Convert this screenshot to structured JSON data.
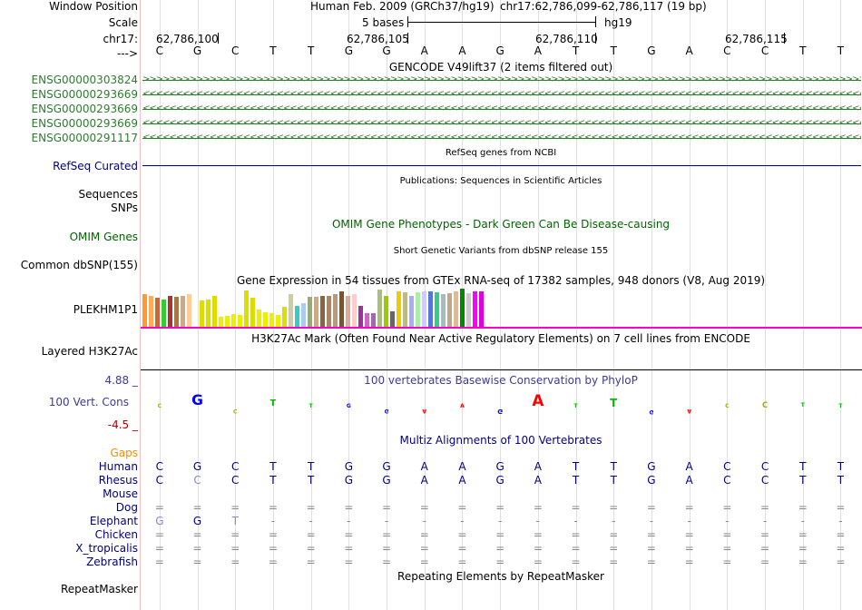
{
  "header": {
    "window_position_label": "Window Position",
    "scale_label": "Scale",
    "chrom_label": "chr17:",
    "strand_label": "--->",
    "assembly_text": "Human Feb. 2009 (GRCh37/hg19)",
    "position_text": "chr17:62,786,099-62,786,117 (19 bp)",
    "scale_text": "5 bases",
    "db_text": "hg19",
    "ticks": [
      "62,786,100",
      "62,786,105",
      "62,786,110",
      "62,786,115"
    ]
  },
  "sequence": [
    "C",
    "G",
    "C",
    "T",
    "T",
    "G",
    "G",
    "A",
    "A",
    "G",
    "A",
    "T",
    "T",
    "G",
    "A",
    "C",
    "C",
    "T",
    "T"
  ],
  "gencode": {
    "title": "GENCODE V49lift37 (2 items filtered out)",
    "genes": [
      {
        "id": "ENSG00000303824",
        "strand": "+"
      },
      {
        "id": "ENSG00000293669",
        "strand": "-"
      },
      {
        "id": "ENSG00000293669",
        "strand": "-"
      },
      {
        "id": "ENSG00000293669",
        "strand": "-"
      },
      {
        "id": "ENSG00000291117",
        "strand": "-"
      }
    ]
  },
  "refseq": {
    "title": "RefSeq genes from NCBI",
    "label": "RefSeq Curated"
  },
  "publications": {
    "title": "Publications: Sequences in Scientific Articles",
    "label1": "Sequences",
    "label2": "SNPs"
  },
  "omim": {
    "title": "OMIM Gene Phenotypes - Dark Green Can Be Disease-causing",
    "label": "OMIM Genes"
  },
  "dbsnp": {
    "title": "Short Genetic Variants from dbSNP release 155",
    "label": "Common dbSNP(155)"
  },
  "gtex": {
    "title": "Gene Expression in 54 tissues from GTEx RNA-seq of 17382 samples, 948 donors (V8, Aug 2019)",
    "label": "PLEKHM1P1",
    "bar_colors": [
      "#ff9933",
      "#ffaa55",
      "#cc6633",
      "#33cc33",
      "#aa3333",
      "#aa7744",
      "#ccaa88",
      "#ffcc99",
      "#ffffff",
      "#dddd00",
      "#dddd00",
      "#dddd00",
      "#eeee00",
      "#eeee00",
      "#eeee00",
      "#eeee00",
      "#dddd00",
      "#dddd00",
      "#eeee00",
      "#eeee00",
      "#eeee00",
      "#eeee00",
      "#dddd00",
      "#ccccaa",
      "#33cccc",
      "#aaccee",
      "#99aa77",
      "#ccaa88",
      "#886644",
      "#aa8866",
      "#bb9977",
      "#775533",
      "#ddaa99",
      "#ffcccc",
      "#993399",
      "#cc66cc",
      "#aa66aa",
      "#aabb88",
      "#99cc00",
      "#666666",
      "#eecc00",
      "#bbbb88",
      "#aaaaff",
      "#aaeeaa",
      "#ccccff",
      "#5577dd",
      "#33cc88",
      "#aabbbb",
      "#bbaa88",
      "#ddbb99",
      "#008800",
      "#cccccc",
      "#ff00ff",
      "#dd00dd"
    ],
    "bar_values": [
      0.85,
      0.8,
      0.75,
      0.72,
      0.8,
      0.78,
      0.82,
      0.85,
      0.2,
      0.7,
      0.72,
      0.8,
      0.25,
      0.28,
      0.33,
      0.3,
      0.95,
      0.75,
      0.45,
      0.38,
      0.35,
      0.3,
      0.52,
      0.85,
      0.55,
      0.62,
      0.78,
      0.78,
      0.8,
      0.82,
      0.85,
      0.92,
      0.8,
      0.85,
      0.55,
      0.35,
      0.35,
      0.98,
      0.82,
      0.4,
      0.92,
      0.9,
      0.8,
      0.9,
      0.92,
      0.92,
      0.9,
      0.85,
      0.88,
      0.92,
      1.0,
      0.88,
      0.92,
      0.92
    ]
  },
  "h3k27ac": {
    "title": "H3K27Ac Mark (Often Found Near Active Regulatory Elements) on 7 cell lines from ENCODE",
    "label": "Layered H3K27Ac"
  },
  "phylop": {
    "title": "100 vertebrates Basewise Conservation by PhyloP",
    "label": "100 Vert. Cons",
    "ymax": "4.88 _",
    "ymin": "-4.5 _",
    "scores": [
      0.1,
      1.3,
      -0.1,
      0.8,
      0.05,
      0.05,
      -0.15,
      -0.05,
      0.2,
      -0.6,
      1.4,
      0.2,
      1.0,
      -0.4,
      -0.2,
      0.1,
      0.7,
      0.5,
      0.05
    ]
  },
  "multiz": {
    "title": "Multiz Alignments of 100 Vertebrates",
    "gaps_label": "Gaps",
    "species": [
      {
        "name": "Human",
        "row": [
          "C",
          "G",
          "C",
          "T",
          "T",
          "G",
          "G",
          "A",
          "A",
          "G",
          "A",
          "T",
          "T",
          "G",
          "A",
          "C",
          "C",
          "T",
          "T"
        ]
      },
      {
        "name": "Rhesus",
        "row": [
          "C",
          "C",
          "C",
          "T",
          "T",
          "G",
          "G",
          "A",
          "A",
          "G",
          "A",
          "T",
          "T",
          "G",
          "A",
          "C",
          "C",
          "T",
          "T"
        ]
      },
      {
        "name": "Mouse",
        "row": []
      },
      {
        "name": "Dog",
        "row": [
          "=",
          "=",
          "=",
          "=",
          "=",
          "=",
          "=",
          "=",
          "=",
          "=",
          "=",
          "=",
          "=",
          "=",
          "=",
          "=",
          "=",
          "=",
          "="
        ]
      },
      {
        "name": "Elephant",
        "row": [
          "G",
          "G",
          "T",
          "-",
          "-",
          "-",
          "-",
          "-",
          "-",
          "-",
          "-",
          "-",
          "-",
          "-",
          "-",
          "-",
          "-",
          "-",
          "-"
        ]
      },
      {
        "name": "Chicken",
        "row": [
          "=",
          "=",
          "=",
          "=",
          "=",
          "=",
          "=",
          "=",
          "=",
          "=",
          "=",
          "=",
          "=",
          "=",
          "=",
          "=",
          "=",
          "=",
          "="
        ]
      },
      {
        "name": "X_tropicalis",
        "row": [
          "=",
          "=",
          "=",
          "=",
          "=",
          "=",
          "=",
          "=",
          "=",
          "=",
          "=",
          "=",
          "=",
          "=",
          "=",
          "=",
          "=",
          "=",
          "="
        ]
      },
      {
        "name": "Zebrafish",
        "row": [
          "=",
          "=",
          "=",
          "=",
          "=",
          "=",
          "=",
          "=",
          "=",
          "=",
          "=",
          "=",
          "=",
          "=",
          "=",
          "=",
          "=",
          "=",
          "="
        ]
      }
    ]
  },
  "repeatmasker": {
    "title": "Repeating Elements by RepeatMasker",
    "label": "RepeatMasker"
  },
  "colors": {
    "gene_green": "#2e7d2e",
    "track_blue": "#00007d",
    "omim_green": "#006400",
    "gaps_orange": "#ff8c00",
    "gtex_pink": "#ff00cc",
    "phylop_blue": "#3c3c96"
  }
}
